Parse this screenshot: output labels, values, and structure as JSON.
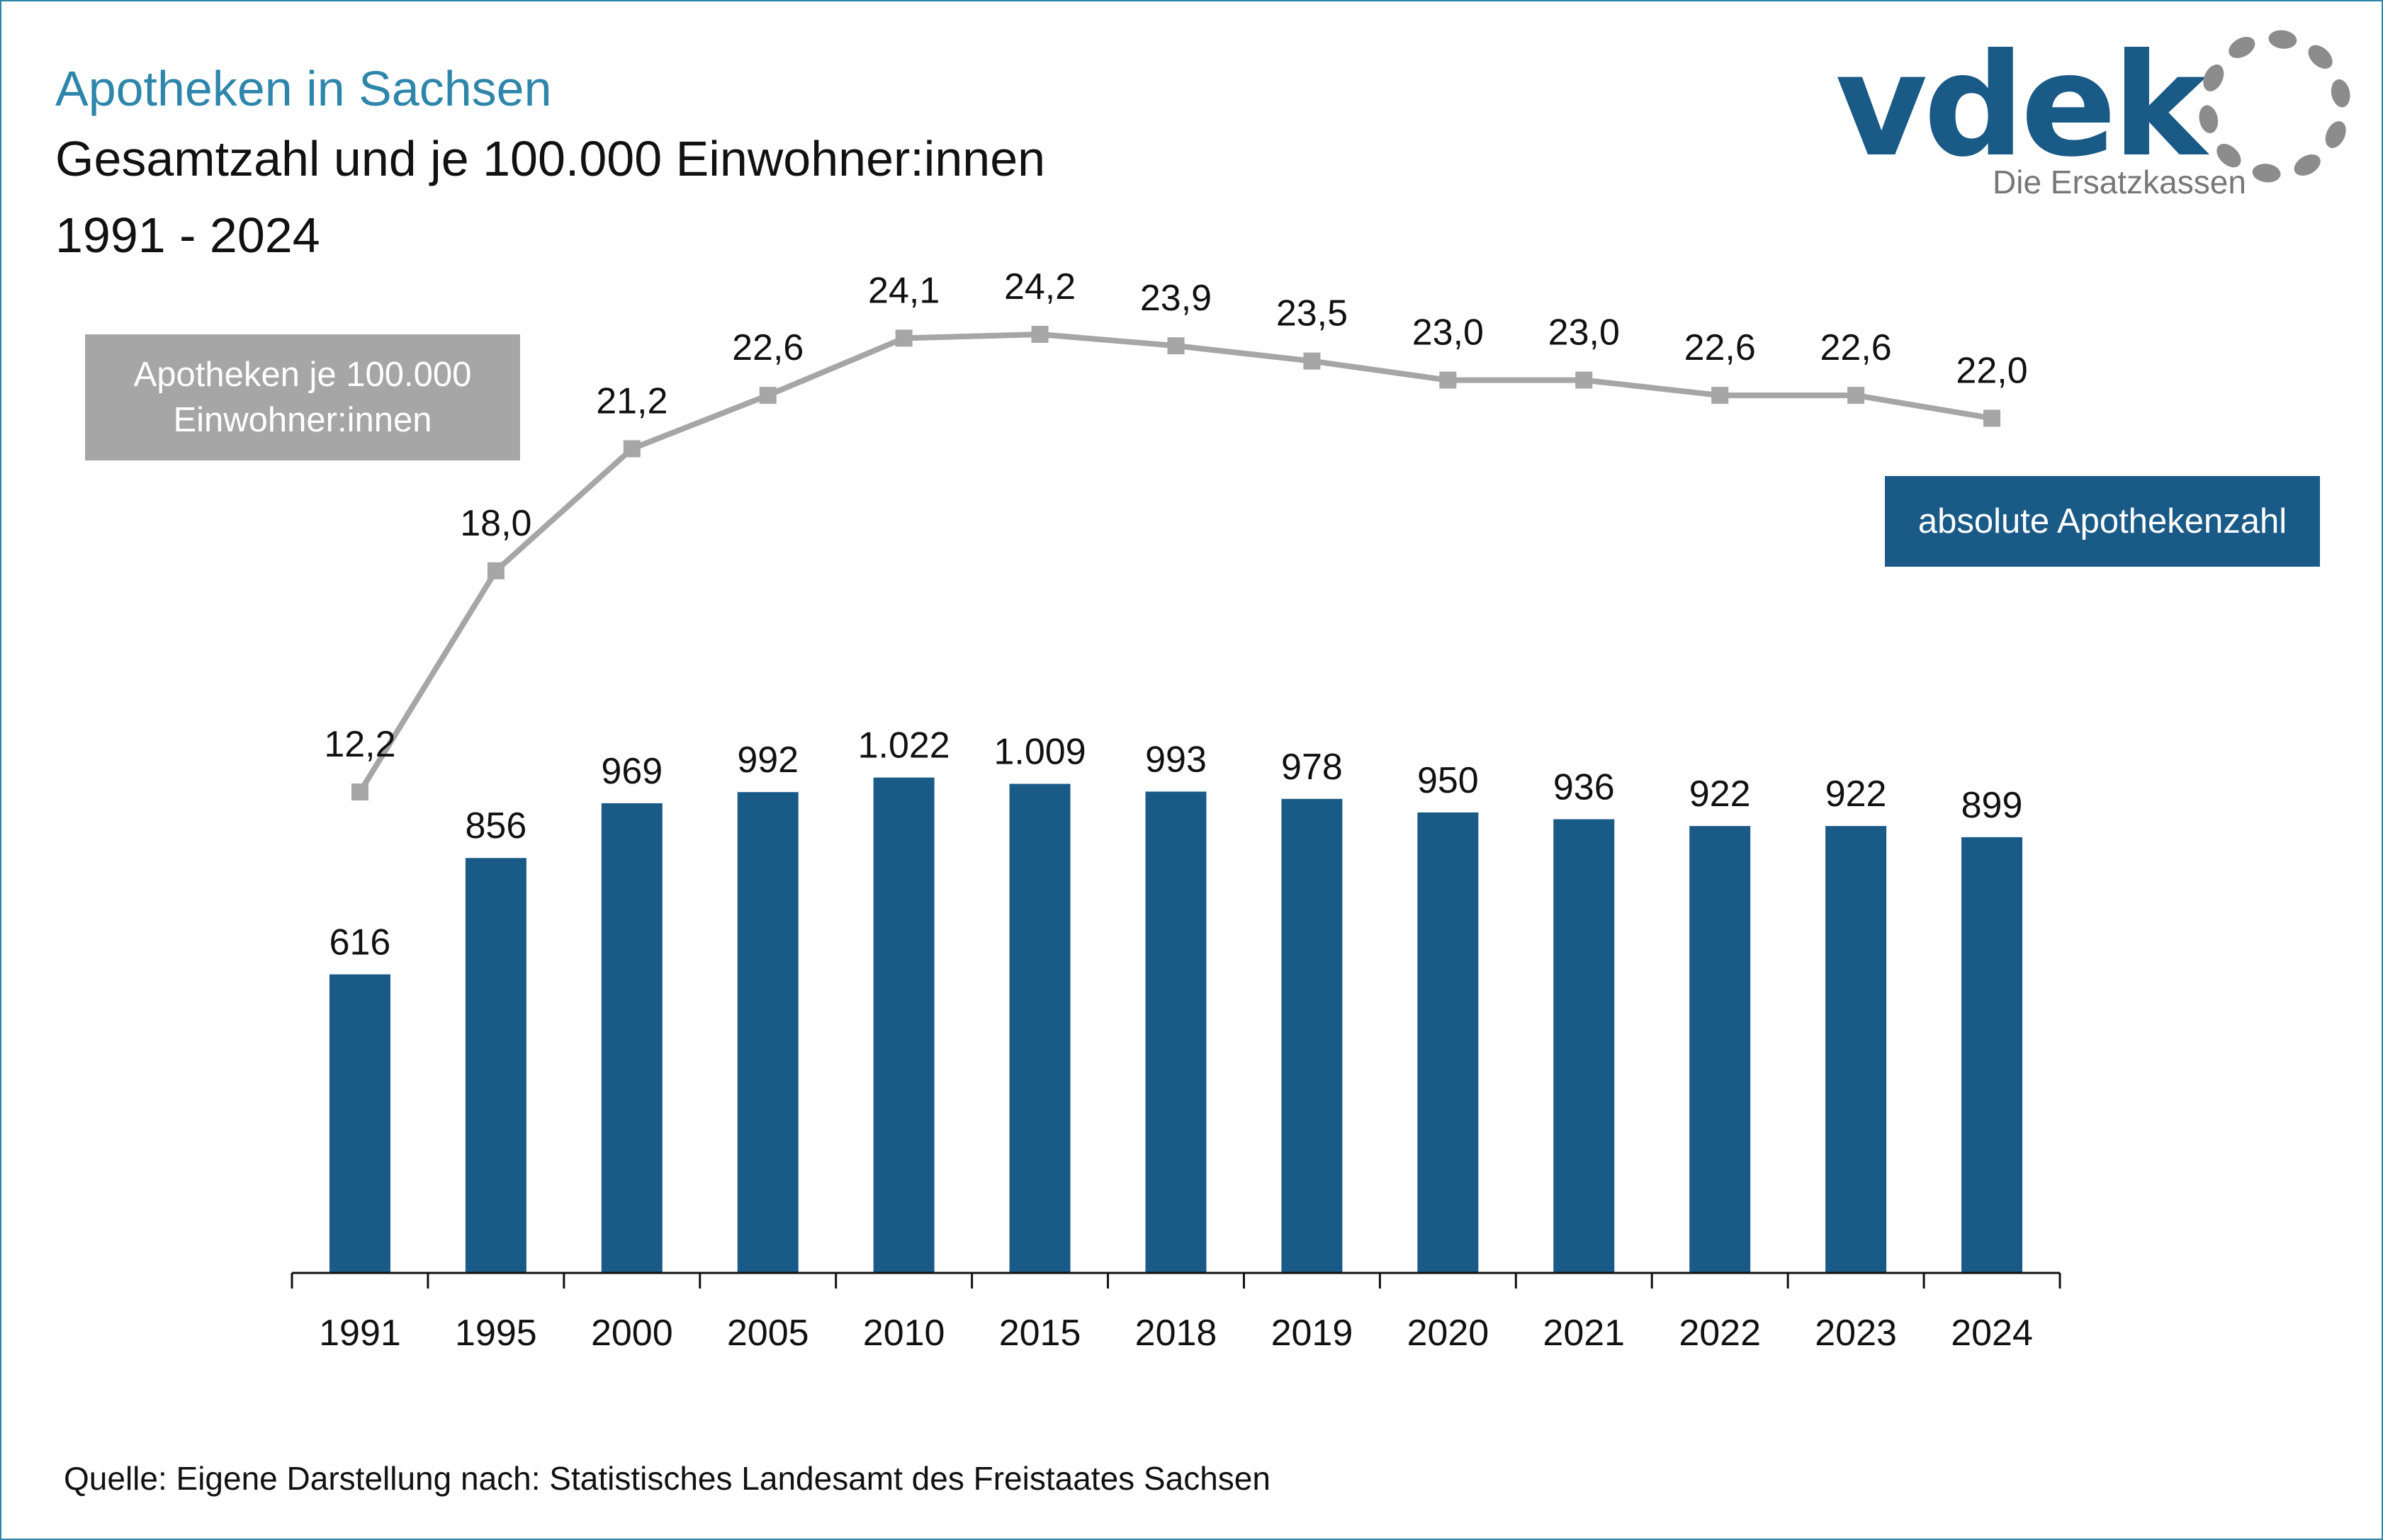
{
  "header": {
    "title": "Apotheken in Sachsen",
    "subtitle_line1": "Gesamtzahl und je 100.000 Einwohner:innen",
    "subtitle_line2": "1991 - 2024"
  },
  "logo": {
    "wordmark": "vdek",
    "tagline": "Die Ersatzkassen",
    "brand_color": "#1a5a87",
    "ring_color": "#8c8c8c"
  },
  "legend": {
    "line_label_line1": "Apotheken je 100.000",
    "line_label_line2": "Einwohner:innen",
    "bar_label": "absolute Apothekenzahl"
  },
  "source": "Quelle: Eigene Darstellung nach: Statistisches Landesamt des Freistaates Sachsen",
  "colors": {
    "bar": "#1a5a87",
    "line": "#a6a6a6",
    "title": "#2e86ab",
    "frame": "#2e86ab"
  },
  "chart_data": {
    "type": "bar",
    "categories": [
      "1991",
      "1995",
      "2000",
      "2005",
      "2010",
      "2015",
      "2018",
      "2019",
      "2020",
      "2021",
      "2022",
      "2023",
      "2024"
    ],
    "series": [
      {
        "name": "absolute Apothekenzahl",
        "type": "bar",
        "values": [
          616,
          856,
          969,
          992,
          1022,
          1009,
          993,
          978,
          950,
          936,
          922,
          922,
          899
        ],
        "labels": [
          "616",
          "856",
          "969",
          "992",
          "1.022",
          "1.009",
          "993",
          "978",
          "950",
          "936",
          "922",
          "922",
          "899"
        ]
      },
      {
        "name": "Apotheken je 100.000 Einwohner:innen",
        "type": "line",
        "values": [
          12.2,
          18.0,
          21.2,
          22.6,
          24.1,
          24.2,
          23.9,
          23.5,
          23.0,
          23.0,
          22.6,
          22.6,
          22.0
        ],
        "labels": [
          "12,2",
          "18,0",
          "21,2",
          "22,6",
          "24,1",
          "24,2",
          "23,9",
          "23,5",
          "23,0",
          "23,0",
          "22,6",
          "22,6",
          "22,0"
        ]
      }
    ],
    "grid": false,
    "legend": "text boxes"
  }
}
